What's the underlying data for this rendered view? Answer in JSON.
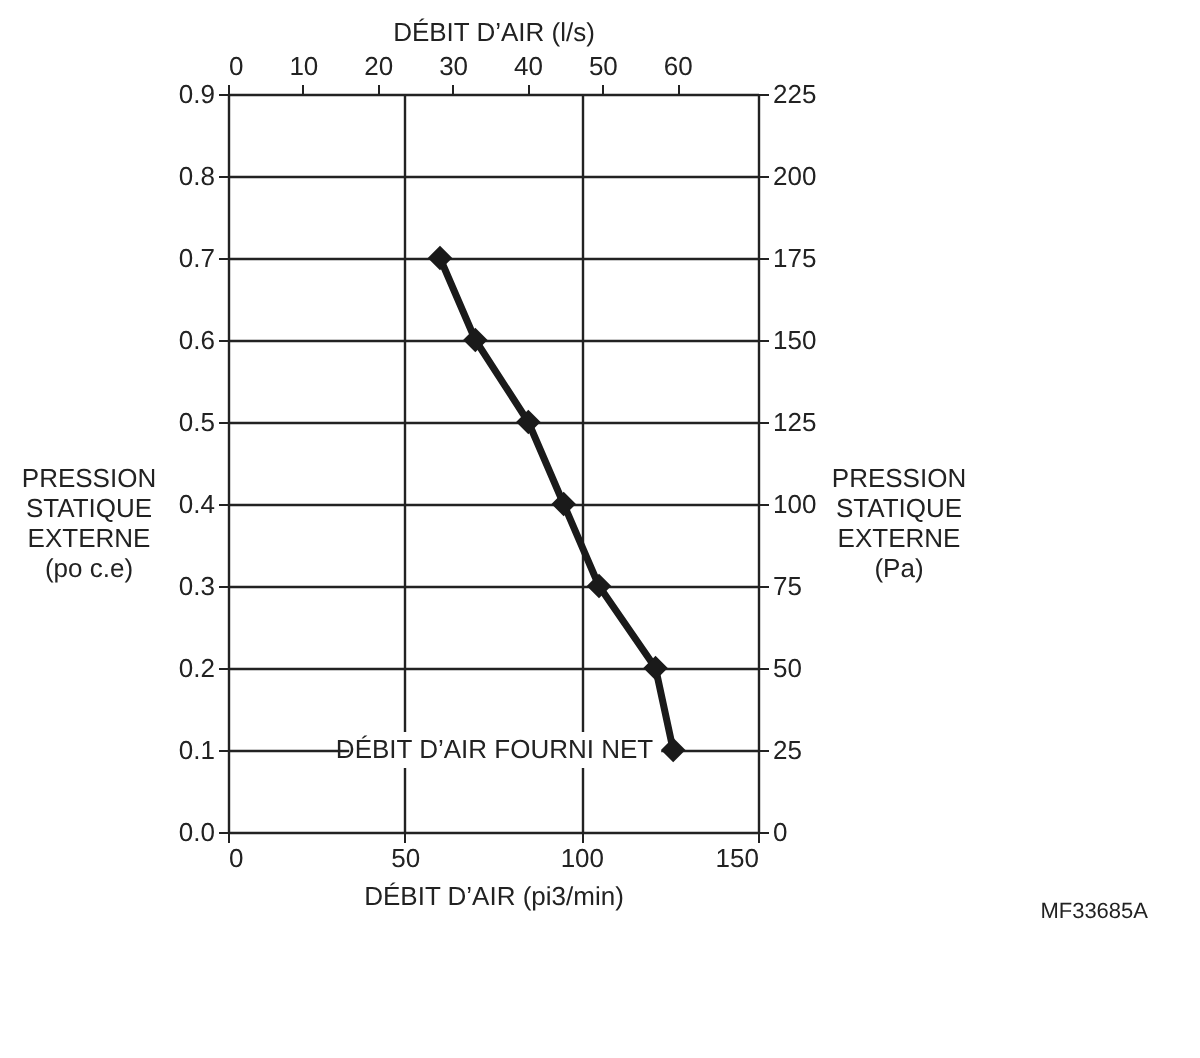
{
  "chart_data": {
    "type": "line",
    "xlabel": "DÉBIT D’AIR (pi3/min)",
    "x2label": "DÉBIT D’AIR (l/s)",
    "ylabel": "PRESSION\nSTATIQUE\nEXTERNE\n(po c.e)",
    "y2label": "PRESSION\nSTATIQUE\nEXTERNE\n(Pa)",
    "x": [
      60,
      70,
      85,
      95,
      105,
      121,
      126
    ],
    "series": [
      {
        "color": "#1a1a1a",
        "values": [
          0.7,
          0.6,
          0.5,
          0.4,
          0.3,
          0.2,
          0.1
        ]
      }
    ],
    "xlim": [
      0,
      150
    ],
    "xticks": [
      0,
      50,
      100,
      150
    ],
    "x2lim": [
      0,
      70.79
    ],
    "x2ticks": [
      0,
      10,
      20,
      30,
      40,
      50,
      60
    ],
    "ylim": [
      0,
      0.9
    ],
    "yticks": [
      {
        "value": 0,
        "label": "0.0"
      },
      0.1,
      0.2,
      0.3,
      0.4,
      0.5,
      0.6,
      0.7,
      0.8,
      0.9
    ],
    "y2lim": [
      0,
      225
    ],
    "y2ticks": [
      0,
      25,
      50,
      75,
      100,
      125,
      150,
      175,
      200,
      225
    ],
    "grid": true,
    "marker": "diamond",
    "line_style": "solid",
    "annotations": [
      {
        "text": "DÉBIT D’AIR FOURNI NET",
        "x": 126,
        "y": 0.1
      },
      "MF33685A"
    ]
  }
}
